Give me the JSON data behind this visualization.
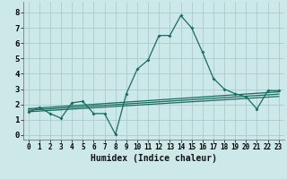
{
  "x": [
    0,
    1,
    2,
    3,
    4,
    5,
    6,
    7,
    8,
    9,
    10,
    11,
    12,
    13,
    14,
    15,
    16,
    17,
    18,
    19,
    20,
    21,
    22,
    23
  ],
  "y_main": [
    1.5,
    1.8,
    1.4,
    1.1,
    2.1,
    2.2,
    1.4,
    1.4,
    0.05,
    2.7,
    4.3,
    4.9,
    6.5,
    6.5,
    7.8,
    7.0,
    5.4,
    3.7,
    3.0,
    2.7,
    2.5,
    1.7,
    2.9,
    2.9
  ],
  "trend_lines": [
    {
      "x0": 0,
      "y0": 1.52,
      "x1": 23,
      "y1": 2.52
    },
    {
      "x0": 0,
      "y0": 1.62,
      "x1": 23,
      "y1": 2.67
    },
    {
      "x0": 0,
      "y0": 1.72,
      "x1": 23,
      "y1": 2.82
    }
  ],
  "bg_color": "#cce8e8",
  "grid_color": "#aacccc",
  "line_color": "#1a6b60",
  "xlim": [
    -0.5,
    23.5
  ],
  "ylim": [
    -0.3,
    8.7
  ],
  "xlabel": "Humidex (Indice chaleur)",
  "xticks": [
    0,
    1,
    2,
    3,
    4,
    5,
    6,
    7,
    8,
    9,
    10,
    11,
    12,
    13,
    14,
    15,
    16,
    17,
    18,
    19,
    20,
    21,
    22,
    23
  ],
  "yticks": [
    0,
    1,
    2,
    3,
    4,
    5,
    6,
    7,
    8
  ],
  "tick_fontsize": 5.5,
  "ylabel_fontsize": 6.5,
  "xlabel_fontsize": 7.0
}
